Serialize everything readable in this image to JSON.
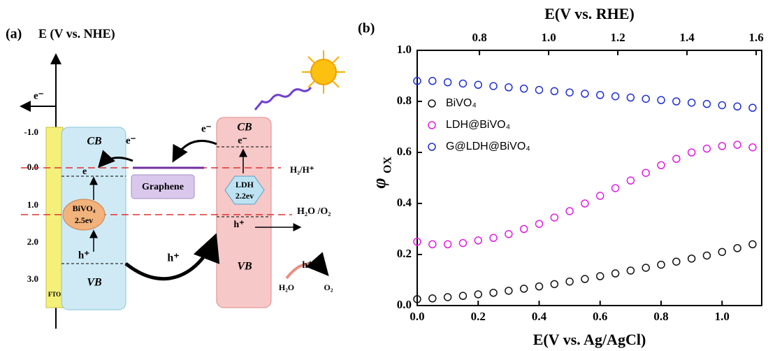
{
  "diagram": {
    "panel_label": "(a)",
    "axis_label": "E (V vs. NHE)",
    "electron_out": "e⁻",
    "levels": [
      "-1.0",
      "0.0",
      "1.0",
      "2.0",
      "3.0"
    ],
    "fto": "FTO",
    "bivo4": {
      "cb": "CB",
      "vb": "VB",
      "name": "BiVO₄",
      "gap": "2.5ev",
      "hole": "h⁺",
      "electron": "e",
      "electron_out": "e⁻"
    },
    "graphene": "Graphene",
    "ldh": {
      "cb": "CB",
      "vb": "VB",
      "name": "LDH",
      "gap": "2.2ev",
      "hole": "h⁺",
      "electron": "e⁻",
      "electron_out": "e⁻"
    },
    "hole_transfer": "h⁺",
    "h2_level": "H₂/H⁺",
    "o2_level": "H₂O /O₂",
    "reaction": {
      "reactant": "H₂O",
      "product": "O₂",
      "hole": "h⁺"
    }
  },
  "chart_data": {
    "type": "scatter",
    "panel_label": "(b)",
    "xlabel": "E(V vs. Ag/AgCl)",
    "x2label": "E(V vs. RHE)",
    "ylabel": "φ",
    "ylabel_sub": "OX",
    "xlim": [
      0,
      1.13
    ],
    "xticks": [
      {
        "value": 0,
        "label": "0.0"
      },
      0.2,
      0.4,
      0.6,
      0.8,
      {
        "value": 1,
        "label": "1.0"
      }
    ],
    "x2lim": [
      0.62,
      1.616
    ],
    "x2ticks": [
      0.8,
      {
        "value": 1,
        "label": "1.0"
      },
      1.2,
      1.4,
      1.6
    ],
    "ylim": [
      0,
      1
    ],
    "yticks": [
      {
        "value": 0,
        "label": "0.0"
      },
      0.2,
      0.4,
      0.6,
      0.8,
      {
        "value": 1,
        "label": "1.0"
      }
    ],
    "x": [
      0,
      0.05,
      0.1,
      0.15,
      0.2,
      0.25,
      0.3,
      0.35,
      0.4,
      0.45,
      0.5,
      0.55,
      0.6,
      0.65,
      0.7,
      0.75,
      0.8,
      0.85,
      0.9,
      0.95,
      1.0,
      1.05,
      1.1
    ],
    "series": [
      {
        "name": "BiVO₄",
        "color": "#111111",
        "values": [
          0.025,
          0.028,
          0.033,
          0.038,
          0.044,
          0.05,
          0.058,
          0.066,
          0.075,
          0.084,
          0.094,
          0.104,
          0.115,
          0.126,
          0.137,
          0.148,
          0.16,
          0.172,
          0.184,
          0.196,
          0.21,
          0.225,
          0.24
        ]
      },
      {
        "name": "LDH@BiVO₄",
        "color": "#e020e0",
        "values": [
          0.25,
          0.24,
          0.24,
          0.245,
          0.255,
          0.265,
          0.28,
          0.3,
          0.32,
          0.345,
          0.37,
          0.4,
          0.43,
          0.46,
          0.49,
          0.52,
          0.55,
          0.575,
          0.6,
          0.615,
          0.625,
          0.63,
          0.62
        ]
      },
      {
        "name": "G@LDH@BiVO₄",
        "color": "#2030d0",
        "values": [
          0.88,
          0.88,
          0.875,
          0.87,
          0.865,
          0.86,
          0.855,
          0.85,
          0.845,
          0.84,
          0.835,
          0.83,
          0.825,
          0.82,
          0.815,
          0.81,
          0.805,
          0.8,
          0.795,
          0.79,
          0.785,
          0.78,
          0.775
        ]
      }
    ]
  }
}
